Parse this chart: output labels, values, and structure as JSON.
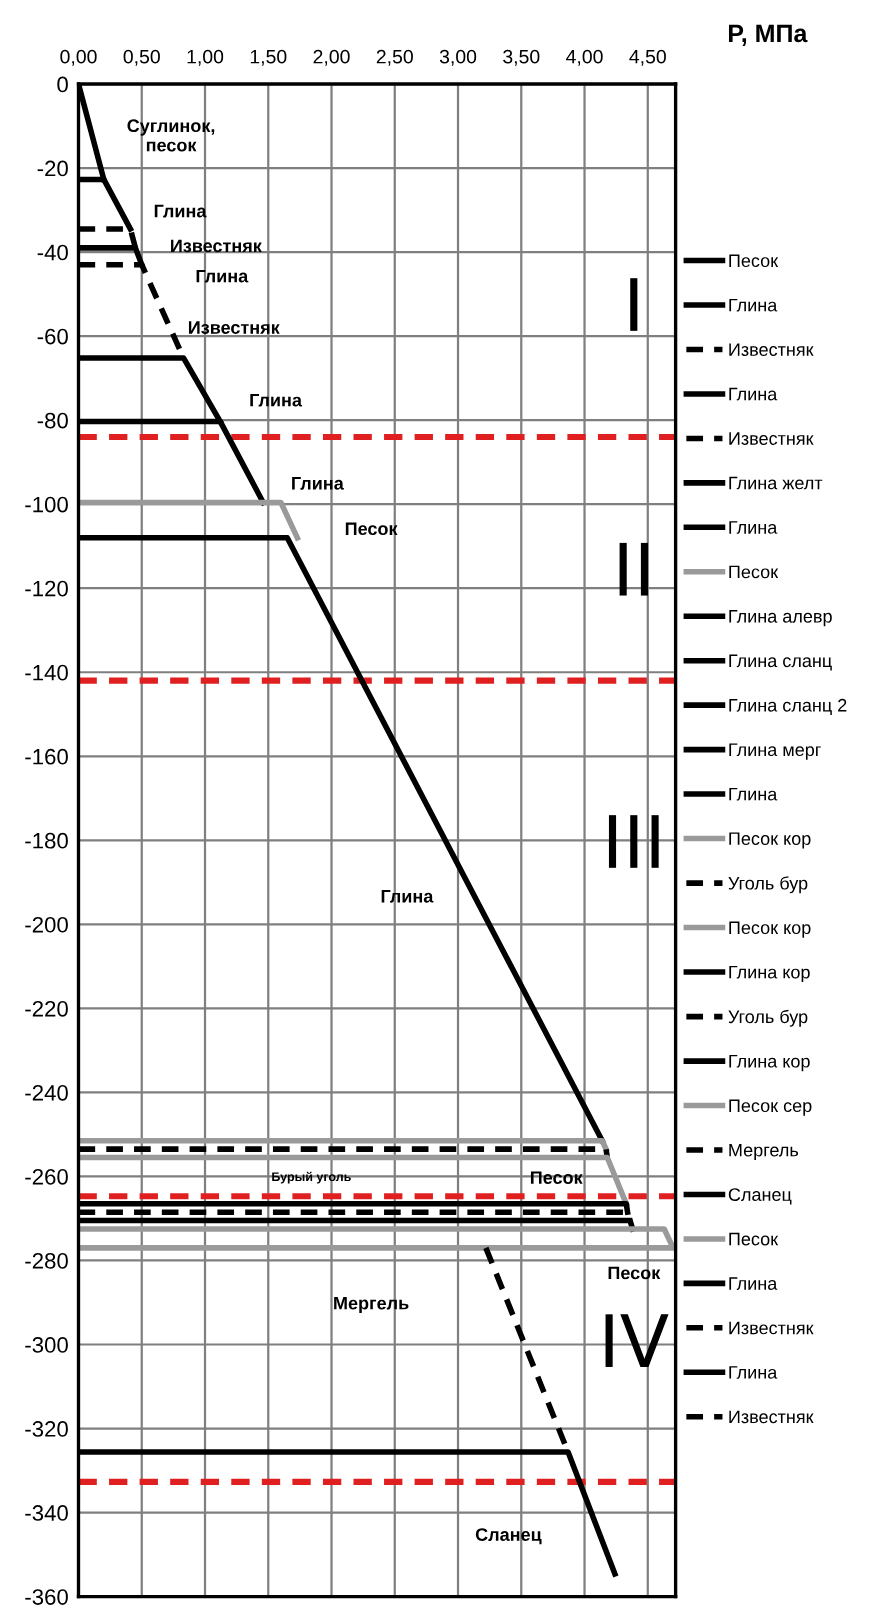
{
  "chart_data": {
    "type": "line",
    "xlabel": "P, МПа",
    "xlim": [
      0,
      4.72
    ],
    "ylim": [
      -360,
      0
    ],
    "xticks": [
      {
        "value": 0,
        "label": "0,00"
      },
      {
        "value": 0.5,
        "label": "0,50"
      },
      {
        "value": 1,
        "label": "1,00"
      },
      {
        "value": 1.5,
        "label": "1,50"
      },
      {
        "value": 2,
        "label": "2,00"
      },
      {
        "value": 2.5,
        "label": "2,50"
      },
      {
        "value": 3,
        "label": "3,00"
      },
      {
        "value": 3.5,
        "label": "3,50"
      },
      {
        "value": 4,
        "label": "4,00"
      },
      {
        "value": 4.5,
        "label": "4,50"
      }
    ],
    "yticks": [
      0,
      -20,
      -40,
      -60,
      -80,
      -100,
      -120,
      -140,
      -160,
      -180,
      -200,
      -220,
      -240,
      -260,
      -280,
      -300,
      -320,
      -340,
      -360
    ],
    "grid": true,
    "legend": "right",
    "series": [
      {
        "name": "Песок",
        "color": "#000000",
        "x": [
          0,
          0.2
        ],
        "values": [
          0,
          -22.7
        ]
      },
      {
        "name": "Глина",
        "color": "#000000",
        "x": [
          0,
          0.2,
          0.41
        ],
        "values": [
          -22.7,
          -22.7,
          -34.5
        ]
      },
      {
        "name": "Известняк",
        "color": "#000000",
        "line_style": "dashed",
        "x": [
          0,
          0.41,
          0.45
        ],
        "values": [
          -34.5,
          -34.5,
          -39
        ]
      },
      {
        "name": "Глина",
        "color": "#000000",
        "x": [
          0,
          0.45,
          0.5
        ],
        "values": [
          -39,
          -39,
          -43
        ]
      },
      {
        "name": "Известняк",
        "color": "#000000",
        "line_style": "dashed",
        "x": [
          0,
          0.5,
          0.83
        ],
        "values": [
          -43,
          -43,
          -65.2
        ]
      },
      {
        "name": "Глина желт",
        "color": "#000000",
        "x": [
          0,
          0.83,
          1.12
        ],
        "values": [
          -65.2,
          -65.2,
          -80.3
        ]
      },
      {
        "name": "Глина",
        "color": "#000000",
        "x": [
          0,
          1.12,
          1.46
        ],
        "values": [
          -80.3,
          -80.3,
          -99.6
        ]
      },
      {
        "name": "Песок",
        "color": "#9a9a9a",
        "x": [
          0,
          1.6,
          1.73
        ],
        "values": [
          -99.6,
          -99.6,
          -108
        ]
      },
      {
        "name": "Глина алевр",
        "color": "#000000",
        "x": [
          0,
          1.65,
          4.14
        ],
        "values": [
          -108,
          -108,
          -251.5
        ]
      },
      {
        "name": "Глина сланц",
        "color": "#000000"
      },
      {
        "name": "Глина сланц 2",
        "color": "#000000"
      },
      {
        "name": "Глина мерг",
        "color": "#000000"
      },
      {
        "name": "Глина",
        "color": "#000000"
      },
      {
        "name": "Песок кор",
        "color": "#9a9a9a",
        "x": [
          0,
          4.14,
          4.17
        ],
        "values": [
          -251.5,
          -251.5,
          -253.5
        ]
      },
      {
        "name": "Уголь бур",
        "color": "#000000",
        "line_style": "dashed",
        "x": [
          0,
          4.17,
          4.18
        ],
        "values": [
          -253.5,
          -253.5,
          -255.5
        ]
      },
      {
        "name": "Песок кор",
        "color": "#9a9a9a",
        "x": [
          0,
          4.18,
          4.33
        ],
        "values": [
          -255.5,
          -255.5,
          -266.5
        ]
      },
      {
        "name": "Глина кор",
        "color": "#000000",
        "x": [
          0,
          4.33,
          4.34
        ],
        "values": [
          -266.5,
          -266.5,
          -268.5
        ]
      },
      {
        "name": "Уголь бур",
        "color": "#000000",
        "line_style": "dashed",
        "x": [
          0,
          4.34,
          4.36
        ],
        "values": [
          -268.5,
          -268.5,
          -270.5
        ]
      },
      {
        "name": "Глина кор",
        "color": "#000000",
        "x": [
          0,
          4.36,
          4.38
        ],
        "values": [
          -270.5,
          -270.5,
          -272.5
        ]
      },
      {
        "name": "Песок сер",
        "color": "#9a9a9a",
        "x": [
          0,
          4.63,
          4.7,
          0
        ],
        "values": [
          -272.5,
          -272.5,
          -277,
          -277
        ]
      },
      {
        "name": "Мергель",
        "color": "#000000",
        "line_style": "dashed",
        "x": [
          3.22,
          3.87
        ],
        "values": [
          -277,
          -325.6
        ]
      },
      {
        "name": "Сланец",
        "color": "#000000",
        "x": [
          0,
          3.87,
          4.24
        ],
        "values": [
          -325.6,
          -325.6,
          -354.6
        ]
      },
      {
        "name": "Песок",
        "color": "#9a9a9a"
      },
      {
        "name": "Глина",
        "color": "#000000"
      },
      {
        "name": "Известняк",
        "color": "#000000",
        "line_style": "dashed"
      },
      {
        "name": "Глина",
        "color": "#000000"
      },
      {
        "name": "Известняк",
        "color": "#000000",
        "line_style": "dashed"
      }
    ],
    "ref_lines": [
      {
        "axis": "y",
        "value": -84,
        "color": "#e02020",
        "line_style": "dashed"
      },
      {
        "axis": "y",
        "value": -142,
        "color": "#e02020",
        "line_style": "dashed"
      },
      {
        "axis": "y",
        "value": -264.7,
        "color": "#e02020",
        "line_style": "dashed"
      },
      {
        "axis": "y",
        "value": -332.7,
        "color": "#e02020",
        "line_style": "dashed"
      }
    ],
    "annotations": [
      "Суглинок,\nпесок",
      "Глина",
      "Известняк",
      "Глина",
      "Известняк",
      "Глина",
      "Глина",
      "Песок",
      "Глина",
      "Бурый уголь",
      "Песок",
      "Песок",
      "Мергель",
      "Сланец",
      "I",
      "II",
      "III",
      "IV"
    ]
  }
}
